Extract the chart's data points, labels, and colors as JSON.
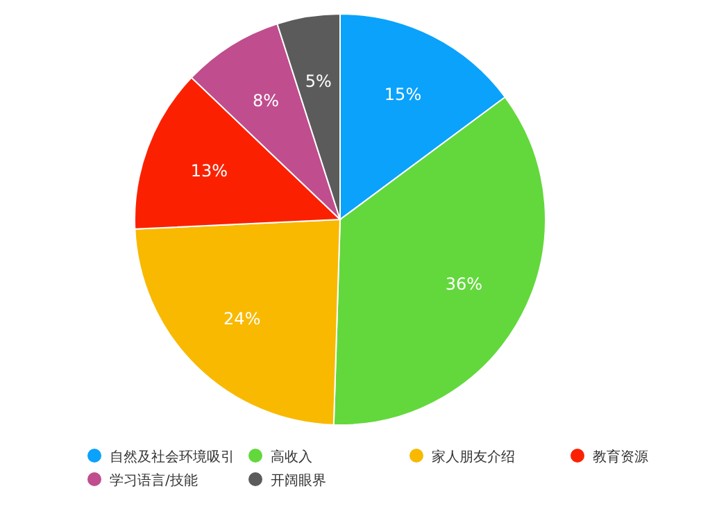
{
  "chart_data": {
    "type": "pie",
    "categories": [
      "自然及社会环境吸引",
      "高收入",
      "家人朋友介绍",
      "教育资源",
      "学习语言/技能",
      "开阔眼界"
    ],
    "values": [
      15,
      36,
      24,
      13,
      8,
      5
    ],
    "value_labels": [
      "15%",
      "36%",
      "24%",
      "13%",
      "8%",
      "5%"
    ],
    "colors": [
      "#0aa2fb",
      "#62d83c",
      "#f8b900",
      "#fb2100",
      "#c04d8e",
      "#5b5b5b"
    ],
    "legend": "bottom"
  }
}
